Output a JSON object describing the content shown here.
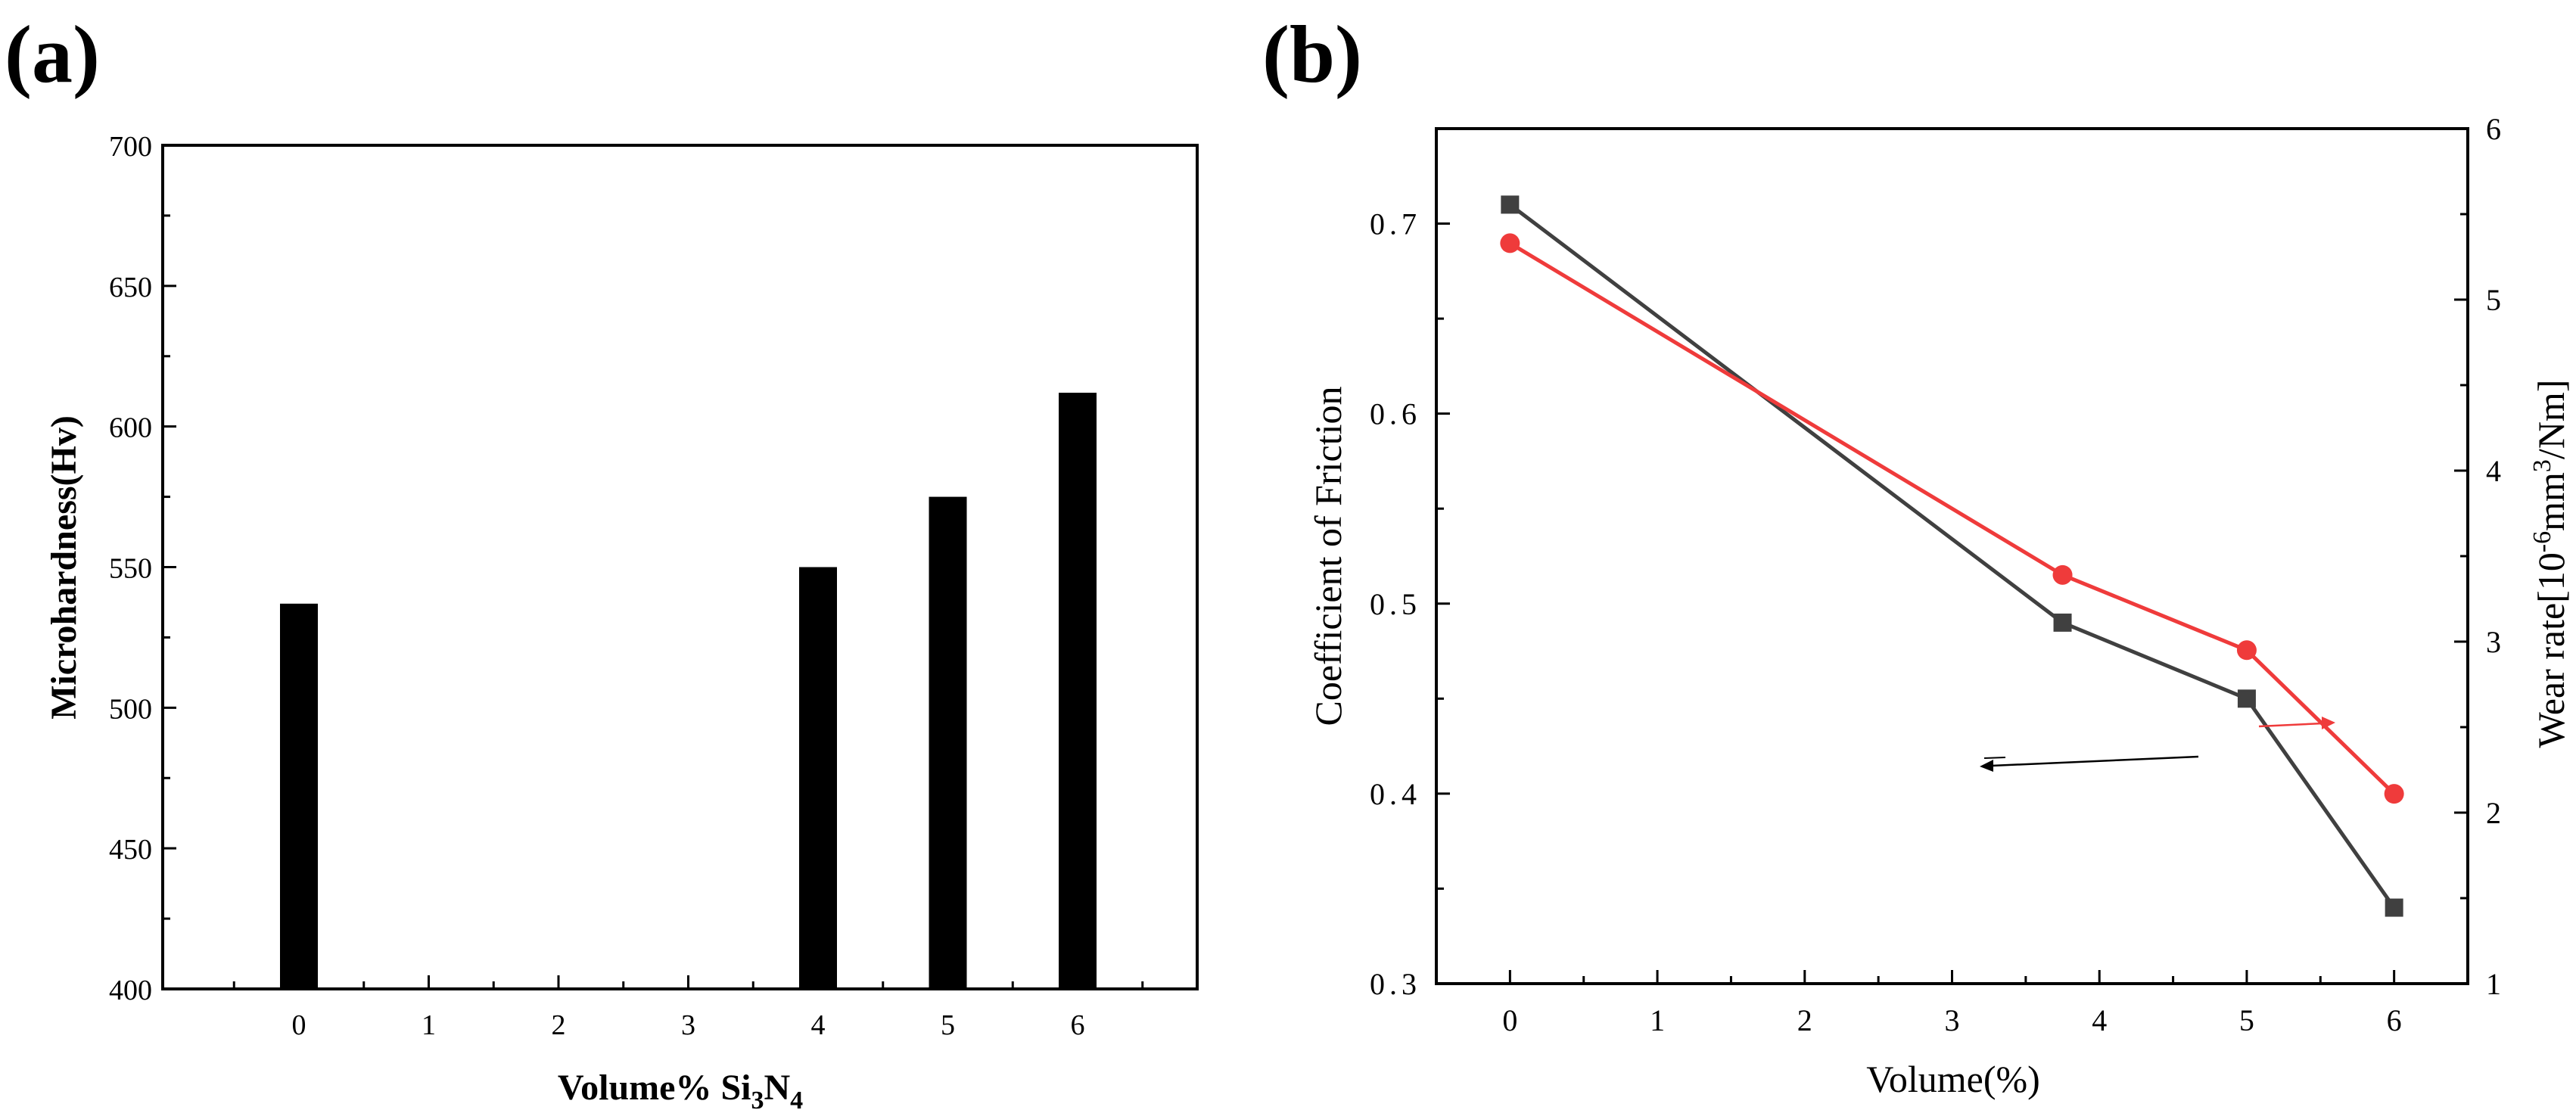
{
  "chart_data": [
    {
      "panel_label": "(a)",
      "type": "bar",
      "title": "",
      "xlabel_prefix": "Volume% Si",
      "xlabel_sub1": "3",
      "xlabel_mid": "N",
      "xlabel_sub2": "4",
      "ylabel": "Microhardness(Hv)",
      "categories": [
        "0",
        "1",
        "2",
        "3",
        "4",
        "5",
        "6"
      ],
      "values": [
        537,
        null,
        null,
        null,
        550,
        575,
        612
      ],
      "ylim": [
        400,
        700
      ],
      "yticks": [
        "400",
        "450",
        "500",
        "550",
        "600",
        "650",
        "700"
      ],
      "bar_color": "#000000"
    },
    {
      "panel_label": "(b)",
      "type": "line",
      "title": "",
      "xlabel": "Volume(%)",
      "ylabel_left": "Coefficient of Friction",
      "ylabel_right_prefix": "Wear rate[10",
      "ylabel_right_sup1": "-6",
      "ylabel_right_mid": "mm",
      "ylabel_right_sup2": "3",
      "ylabel_right_suffix": "/Nm]",
      "xlim": [
        -0.5,
        6.5
      ],
      "xticks": [
        "0",
        "1",
        "2",
        "3",
        "4",
        "5",
        "6"
      ],
      "ylim_left": [
        0.3,
        0.75
      ],
      "yticks_left": [
        "0.3",
        "0.4",
        "0.5",
        "0.6",
        "0.7"
      ],
      "ylim_right": [
        1,
        6
      ],
      "yticks_right": [
        "1",
        "2",
        "3",
        "4",
        "5",
        "6"
      ],
      "series": [
        {
          "name": "Coefficient of Friction",
          "axis": "left",
          "marker": "square",
          "color": "#404040",
          "x": [
            0,
            3.75,
            5,
            6
          ],
          "y": [
            0.71,
            0.49,
            0.45,
            0.34
          ]
        },
        {
          "name": "Wear rate",
          "axis": "right",
          "marker": "circle",
          "color": "#ef3b3b",
          "x": [
            0,
            3.75,
            5,
            6
          ],
          "y": [
            5.33,
            3.39,
            2.95,
            2.11
          ]
        }
      ]
    }
  ]
}
